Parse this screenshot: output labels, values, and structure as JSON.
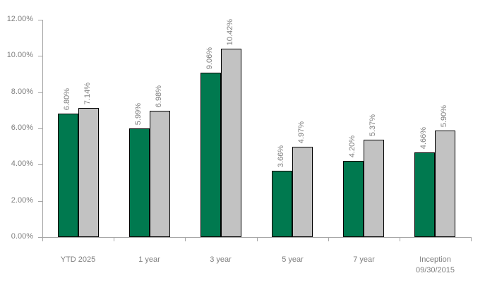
{
  "chart_data": {
    "type": "bar",
    "title": "",
    "xlabel": "",
    "ylabel": "",
    "ylim": [
      0,
      12
    ],
    "grid": false,
    "legend_position": "none",
    "categories": [
      "YTD 2025",
      "1 year",
      "3 year",
      "5 year",
      "7 year",
      "Inception\n09/30/2015"
    ],
    "yticks": {
      "values": [
        0,
        2,
        4,
        6,
        8,
        10,
        12
      ],
      "labels": [
        "0.00%",
        "2.00%",
        "4.00%",
        "6.00%",
        "8.00%",
        "10.00%",
        "12.00%"
      ]
    },
    "series": [
      {
        "name": "green-series",
        "color": "#00794F",
        "values": [
          6.8,
          5.99,
          9.06,
          3.66,
          4.2,
          4.66
        ],
        "labels": [
          "6.80%",
          "5.99%",
          "9.06%",
          "3.66%",
          "4.20%",
          "4.66%"
        ]
      },
      {
        "name": "gray-series",
        "color": "#C2C2C2",
        "values": [
          7.14,
          6.98,
          10.42,
          4.97,
          5.37,
          5.9
        ],
        "labels": [
          "7.14%",
          "6.98%",
          "10.42%",
          "4.97%",
          "5.37%",
          "5.90%"
        ]
      }
    ],
    "colors": {
      "bar_border": "#000000",
      "axis": "#A6A6A6",
      "tick_text": "#7F7F7F",
      "value_label_text": "#7F7F7F"
    }
  }
}
